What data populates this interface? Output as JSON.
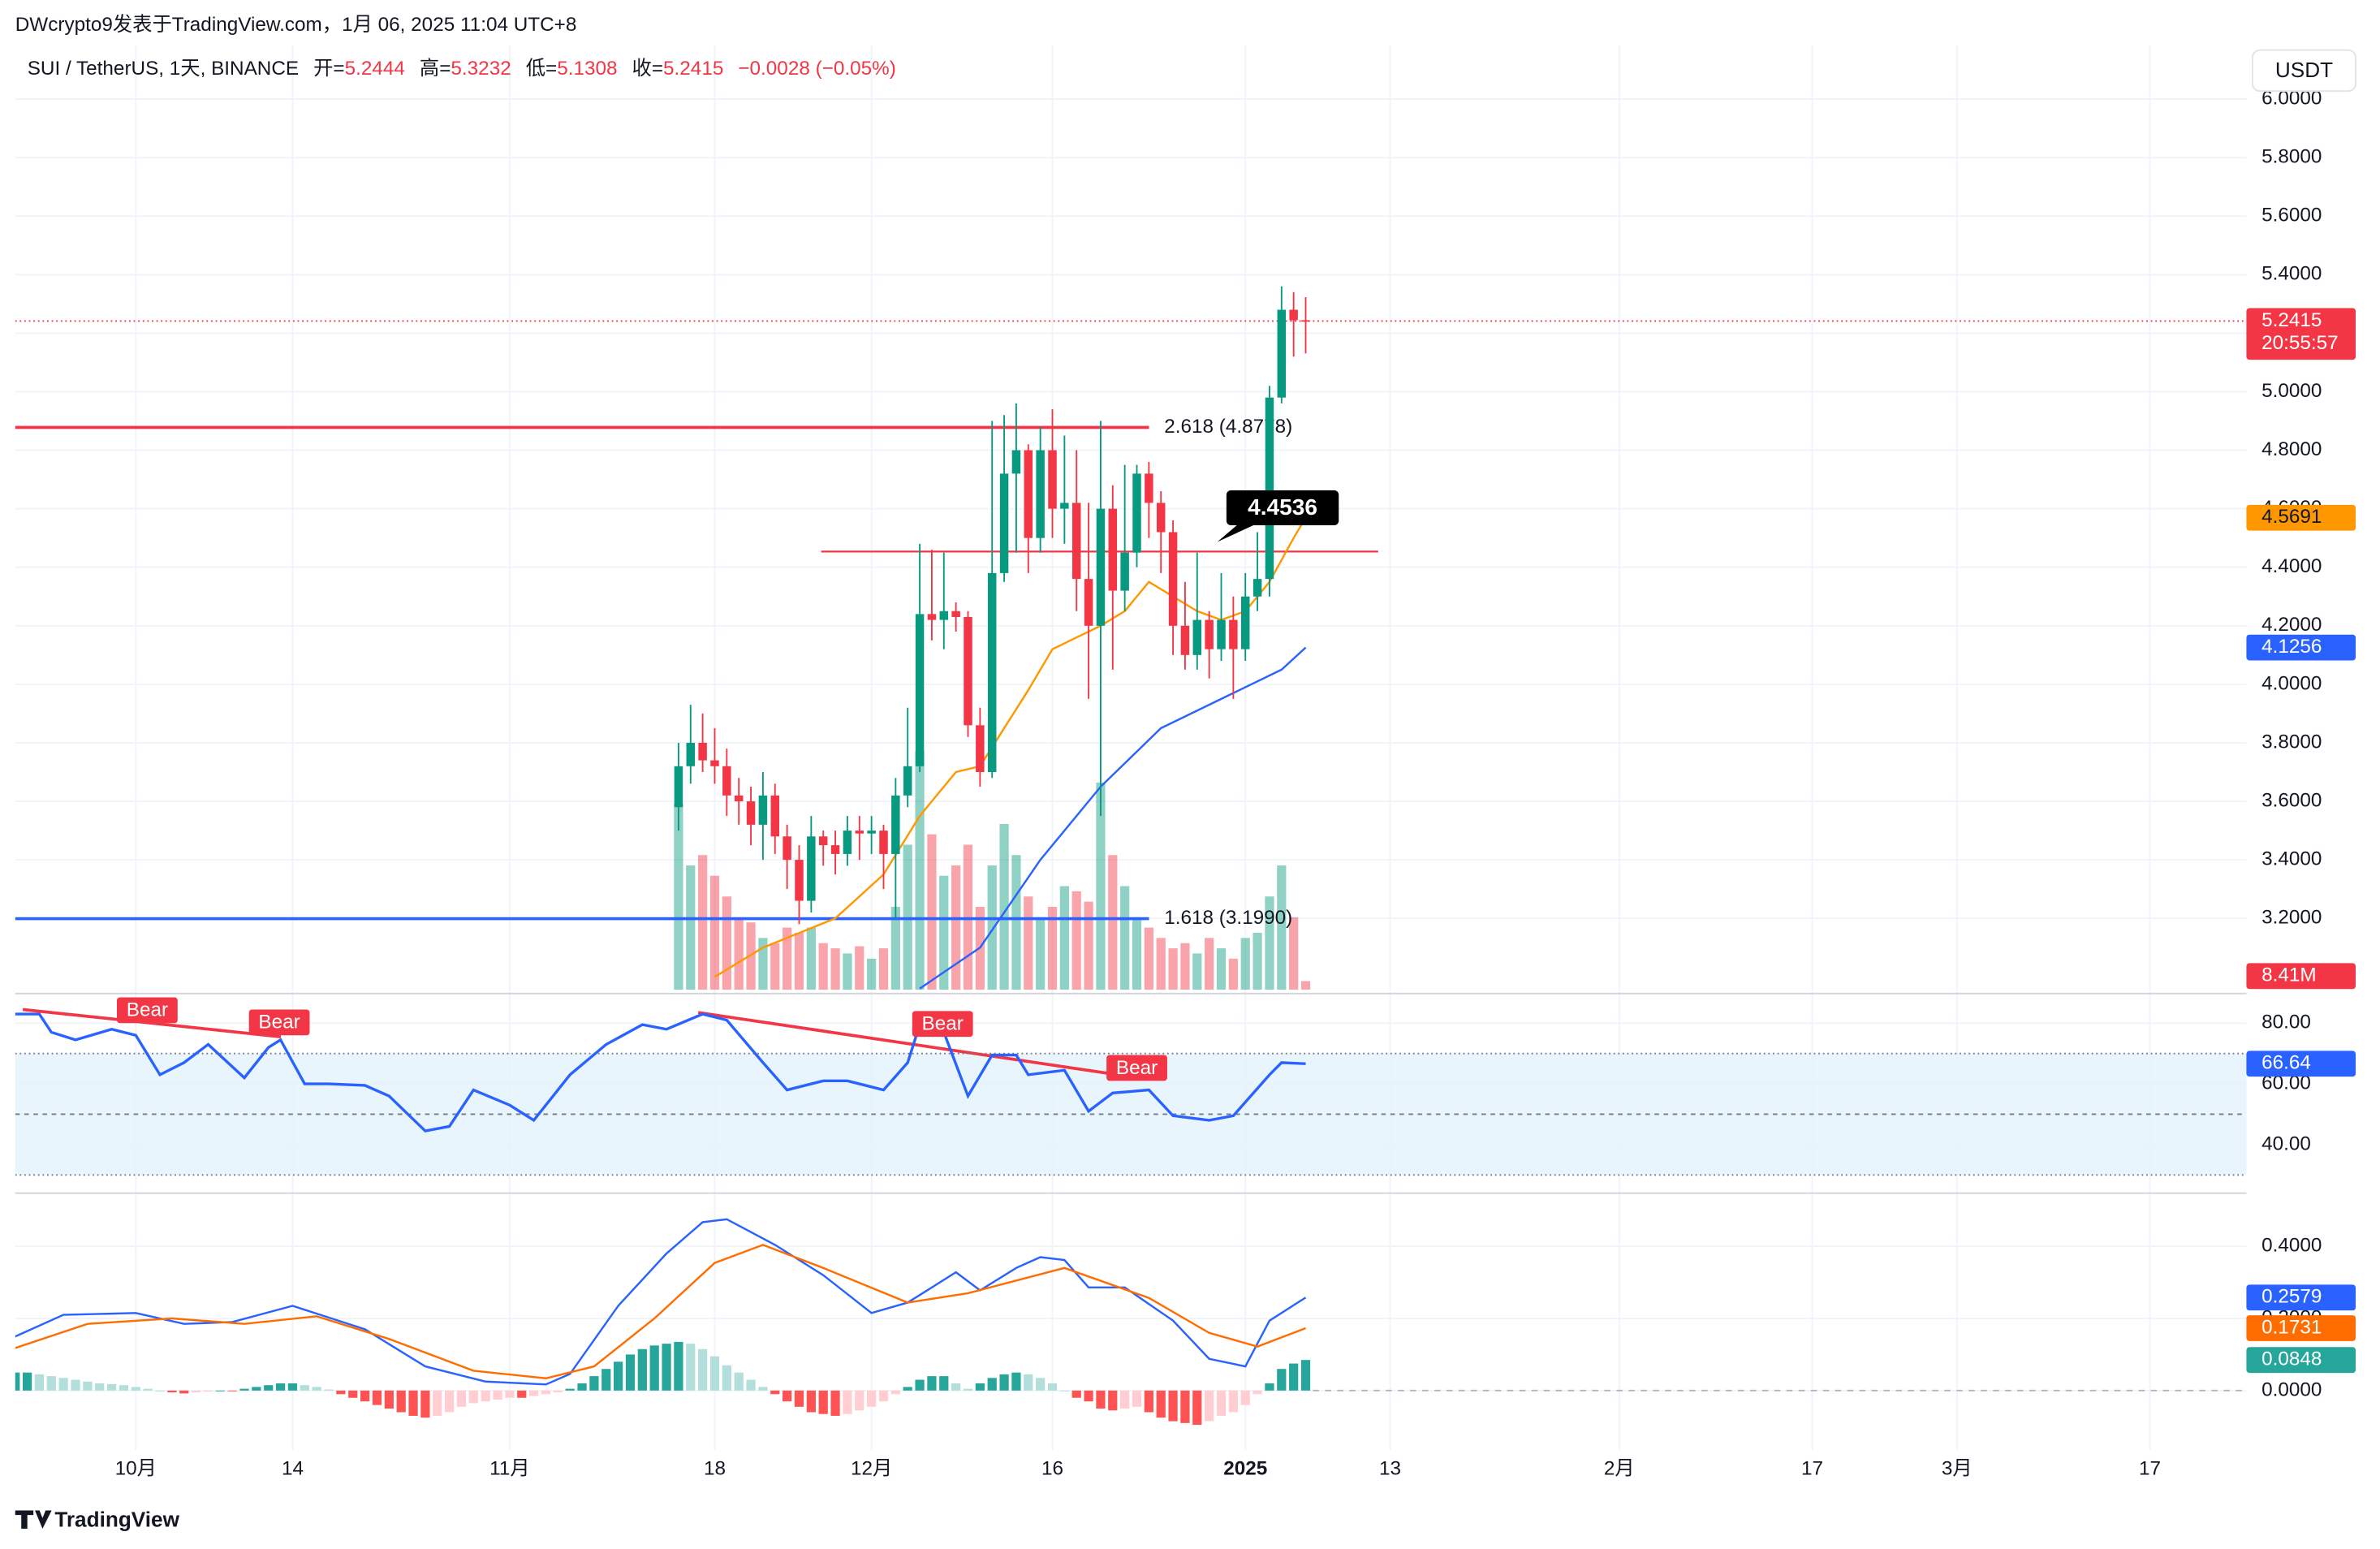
{
  "header": {
    "title": "DWcrypto9发表于TradingView.com，1月 06, 2025 11:04 UTC+8",
    "currency": "USDT",
    "brand": "TradingView"
  },
  "chart_data": [
    {
      "type": "candlestick",
      "symbol": "SUI / TetherUS, 1天, BINANCE",
      "ohlc_legend": {
        "open_label": "开=",
        "open": 5.2444,
        "high_label": "高=",
        "high": 5.3232,
        "low_label": "低=",
        "low": 5.1308,
        "close_label": "收=",
        "close": 5.2415,
        "change": "−0.0028 (−0.05%)"
      },
      "x": [
        45,
        46,
        47,
        48,
        49,
        50,
        51,
        52,
        53,
        54,
        55,
        56,
        57,
        58,
        59,
        60,
        61,
        62,
        63,
        64,
        65,
        66,
        67,
        68,
        69,
        70,
        71,
        72,
        73,
        74,
        75,
        76,
        77,
        78,
        79,
        80,
        81,
        82,
        83,
        84,
        85,
        86,
        87,
        88,
        89,
        90,
        91,
        92,
        93,
        94,
        95,
        96,
        97
      ],
      "open": [
        3.58,
        3.72,
        3.8,
        3.74,
        3.72,
        3.62,
        3.6,
        3.52,
        3.62,
        3.48,
        3.4,
        3.26,
        3.48,
        3.45,
        3.42,
        3.5,
        3.49,
        3.5,
        3.42,
        3.62,
        3.72,
        4.24,
        4.22,
        4.25,
        4.23,
        3.86,
        3.7,
        4.38,
        4.72,
        4.8,
        4.5,
        4.8,
        4.6,
        4.62,
        4.36,
        4.2,
        4.6,
        4.32,
        4.45,
        4.72,
        4.62,
        4.52,
        4.2,
        4.1,
        4.22,
        4.12,
        4.22,
        4.12,
        4.3,
        4.36,
        4.98,
        5.28,
        5.2444
      ],
      "high": [
        3.8,
        3.93,
        3.9,
        3.85,
        3.78,
        3.68,
        3.65,
        3.7,
        3.66,
        3.52,
        3.45,
        3.55,
        3.5,
        3.5,
        3.55,
        3.55,
        3.55,
        3.52,
        3.68,
        3.92,
        4.48,
        4.46,
        4.45,
        4.28,
        4.25,
        3.92,
        4.9,
        4.92,
        4.96,
        4.82,
        4.88,
        4.94,
        4.85,
        4.8,
        4.62,
        4.9,
        4.68,
        4.75,
        4.75,
        4.76,
        4.66,
        4.56,
        4.35,
        4.45,
        4.25,
        4.38,
        4.3,
        4.38,
        4.52,
        5.02,
        5.36,
        5.34,
        5.3232
      ],
      "low": [
        3.5,
        3.66,
        3.7,
        3.66,
        3.55,
        3.52,
        3.45,
        3.4,
        3.42,
        3.3,
        3.18,
        3.22,
        3.38,
        3.35,
        3.38,
        3.4,
        3.42,
        3.3,
        3.2,
        3.58,
        3.7,
        4.15,
        4.12,
        4.18,
        3.82,
        3.65,
        3.68,
        4.35,
        4.45,
        4.38,
        4.45,
        4.5,
        4.48,
        4.25,
        3.95,
        3.55,
        4.05,
        4.25,
        4.4,
        4.5,
        4.38,
        4.1,
        4.05,
        4.05,
        4.02,
        4.08,
        3.95,
        4.08,
        4.25,
        4.3,
        4.96,
        5.12,
        5.1308
      ],
      "close": [
        3.72,
        3.8,
        3.74,
        3.72,
        3.62,
        3.6,
        3.52,
        3.62,
        3.48,
        3.4,
        3.26,
        3.48,
        3.45,
        3.42,
        3.5,
        3.49,
        3.5,
        3.42,
        3.62,
        3.72,
        4.24,
        4.22,
        4.25,
        4.23,
        3.86,
        3.7,
        4.38,
        4.72,
        4.8,
        4.5,
        4.8,
        4.6,
        4.62,
        4.36,
        4.2,
        4.6,
        4.32,
        4.45,
        4.72,
        4.62,
        4.52,
        4.2,
        4.1,
        4.22,
        4.12,
        4.22,
        4.12,
        4.3,
        4.36,
        4.98,
        5.28,
        5.2444,
        5.2415
      ],
      "volume": [
        180,
        120,
        130,
        110,
        90,
        70,
        65,
        50,
        45,
        60,
        55,
        60,
        45,
        40,
        35,
        42,
        30,
        40,
        80,
        140,
        230,
        150,
        110,
        120,
        140,
        80,
        120,
        160,
        130,
        90,
        70,
        80,
        100,
        95,
        85,
        200,
        130,
        100,
        70,
        60,
        50,
        40,
        45,
        35,
        50,
        40,
        30,
        50,
        55,
        90,
        120,
        70,
        8.41
      ],
      "volume_label": "8.41M",
      "up_color": "#089981",
      "down_color": "#f23645",
      "xlim": [
        -10,
        175
      ],
      "xticks": [
        {
          "value": 0,
          "label": "10月"
        },
        {
          "value": 13,
          "label": "14"
        },
        {
          "value": 31,
          "label": "11月"
        },
        {
          "value": 48,
          "label": "18"
        },
        {
          "value": 61,
          "label": "12月"
        },
        {
          "value": 76,
          "label": "16"
        },
        {
          "value": 92,
          "label": "2025"
        },
        {
          "value": 104,
          "label": "13"
        },
        {
          "value": 123,
          "label": "2月"
        },
        {
          "value": 139,
          "label": "17"
        },
        {
          "value": 151,
          "label": "3月"
        },
        {
          "value": 167,
          "label": "17"
        }
      ],
      "ylim": [
        2.956,
        6.183
      ],
      "yticks": [
        {
          "value": 3.2,
          "label": "3.2000"
        },
        {
          "value": 3.4,
          "label": "3.4000"
        },
        {
          "value": 3.6,
          "label": "3.6000"
        },
        {
          "value": 3.8,
          "label": "3.8000"
        },
        {
          "value": 4.0,
          "label": "4.0000"
        },
        {
          "value": 4.2,
          "label": "4.2000"
        },
        {
          "value": 4.4,
          "label": "4.4000"
        },
        {
          "value": 4.6,
          "label": "4.6000"
        },
        {
          "value": 4.8,
          "label": "4.8000"
        },
        {
          "value": 5.0,
          "label": "5.0000"
        },
        {
          "value": 5.2,
          "label": "5.2000"
        },
        {
          "value": 5.4,
          "label": "5.4000"
        },
        {
          "value": 5.6,
          "label": "5.6000"
        },
        {
          "value": 5.8,
          "label": "5.8000"
        },
        {
          "value": 6.0,
          "label": "6.0000"
        }
      ],
      "grid": true,
      "last_price": {
        "value": 5.2415,
        "countdown": "20:55:57"
      },
      "moving_averages": [
        {
          "color": "#ff9800",
          "x": [
            48,
            52,
            55,
            58,
            62,
            65,
            68,
            70,
            72,
            74,
            76,
            78,
            80,
            82,
            84,
            86,
            88,
            90,
            92,
            94,
            96,
            97
          ],
          "values": [
            3.0,
            3.1,
            3.15,
            3.2,
            3.35,
            3.55,
            3.7,
            3.72,
            3.85,
            3.98,
            4.12,
            4.16,
            4.2,
            4.25,
            4.35,
            4.3,
            4.25,
            4.22,
            4.25,
            4.35,
            4.5,
            4.5691
          ]
        },
        {
          "color": "#2962ff",
          "x": [
            65,
            70,
            75,
            80,
            85,
            90,
            95,
            97
          ],
          "values": [
            2.96,
            3.1,
            3.4,
            3.65,
            3.85,
            3.95,
            4.05,
            4.1256
          ]
        }
      ],
      "fib_levels": [
        {
          "label": "2.618 (4.8778)",
          "value": 4.8778,
          "color": "#f23645"
        },
        {
          "label": "1.618 (3.1990)",
          "value": 3.199,
          "color": "#2962ff"
        }
      ],
      "horizontal_line": {
        "value": 4.4536,
        "color": "#f23645"
      }
    },
    {
      "type": "line",
      "color": "#2962ff",
      "x": [
        -10,
        -8,
        -7,
        -5,
        -2,
        0,
        2,
        4,
        6,
        9,
        11,
        12,
        14,
        16,
        19,
        21,
        24,
        26,
        28,
        31,
        33,
        36,
        39,
        42,
        44,
        47,
        49,
        52,
        54,
        57,
        59,
        62,
        64,
        65,
        67,
        69,
        71,
        73,
        74,
        77,
        79,
        81,
        84,
        86,
        89,
        91,
        94,
        95,
        97
      ],
      "values": [
        83,
        83,
        77,
        74.5,
        78,
        76,
        63,
        67,
        73,
        62,
        72,
        74.5,
        60,
        60,
        59.5,
        56,
        44.5,
        46,
        58,
        53,
        48,
        63,
        73,
        79.5,
        78,
        83,
        81,
        67,
        58,
        61,
        61,
        58,
        67,
        79.5,
        77,
        56,
        69.5,
        69.5,
        63,
        64.5,
        51,
        57,
        58,
        49.5,
        48,
        49.5,
        63,
        67,
        66.64
      ],
      "ylim": [
        27,
        87
      ],
      "yticks": [
        {
          "value": 80,
          "label": "80.00"
        },
        {
          "value": 60,
          "label": "60.00"
        },
        {
          "value": 40,
          "label": "40.00"
        }
      ],
      "levels": [
        70,
        50,
        30
      ],
      "annotations": [
        "Bear",
        "Bear",
        "Bear",
        "Bear"
      ]
    },
    {
      "type": "macd",
      "series": [
        {
          "color": "#2962ff",
          "x": [
            -10,
            -6,
            0,
            4,
            8,
            13,
            19,
            24,
            29,
            34,
            36,
            40,
            44,
            47,
            49,
            53,
            57,
            61,
            64,
            68,
            70,
            73,
            75,
            77,
            79,
            82,
            86,
            89,
            92,
            94,
            97
          ],
          "values": [
            0.15,
            0.21,
            0.215,
            0.185,
            0.19,
            0.235,
            0.17,
            0.067,
            0.025,
            0.017,
            0.046,
            0.235,
            0.38,
            0.467,
            0.475,
            0.404,
            0.32,
            0.215,
            0.244,
            0.328,
            0.278,
            0.34,
            0.37,
            0.362,
            0.286,
            0.286,
            0.194,
            0.088,
            0.067,
            0.194,
            0.2579
          ]
        },
        {
          "color": "#ff6d00",
          "x": [
            -10,
            -4,
            3,
            9,
            15,
            21,
            28,
            34,
            38,
            43,
            48,
            52,
            57,
            64,
            69,
            77,
            84,
            89,
            93,
            97
          ],
          "values": [
            0.118,
            0.185,
            0.2,
            0.185,
            0.206,
            0.143,
            0.055,
            0.034,
            0.067,
            0.2,
            0.354,
            0.404,
            0.34,
            0.244,
            0.27,
            0.34,
            0.257,
            0.16,
            0.122,
            0.1731
          ]
        }
      ],
      "histogram": {
        "colors": [
          "#26a69a",
          "#b2dfdb",
          "#ff5252",
          "#ffcdd2"
        ],
        "x": [
          -10,
          -9,
          -8,
          -7,
          -6,
          -5,
          -4,
          -3,
          -2,
          -1,
          0,
          1,
          2,
          3,
          4,
          5,
          6,
          7,
          8,
          9,
          10,
          11,
          12,
          13,
          14,
          15,
          16,
          17,
          18,
          19,
          20,
          21,
          22,
          23,
          24,
          25,
          26,
          27,
          28,
          29,
          30,
          31,
          32,
          33,
          34,
          35,
          36,
          37,
          38,
          39,
          40,
          41,
          42,
          43,
          44,
          45,
          46,
          47,
          48,
          49,
          50,
          51,
          52,
          53,
          54,
          55,
          56,
          57,
          58,
          59,
          60,
          61,
          62,
          63,
          64,
          65,
          66,
          67,
          68,
          69,
          70,
          71,
          72,
          73,
          74,
          75,
          76,
          77,
          78,
          79,
          80,
          81,
          82,
          83,
          84,
          85,
          86,
          87,
          88,
          89,
          90,
          91,
          92,
          93,
          94,
          95,
          96,
          97
        ],
        "values": [
          0.05,
          0.05,
          0.045,
          0.04,
          0.035,
          0.03,
          0.025,
          0.02,
          0.018,
          0.015,
          0.01,
          0.005,
          0,
          -0.005,
          -0.008,
          -0.005,
          -0.003,
          0,
          -0.002,
          0.005,
          0.01,
          0.015,
          0.02,
          0.02,
          0.015,
          0.01,
          0.003,
          -0.01,
          -0.02,
          -0.03,
          -0.04,
          -0.05,
          -0.06,
          -0.07,
          -0.075,
          -0.07,
          -0.06,
          -0.045,
          -0.035,
          -0.03,
          -0.025,
          -0.02,
          -0.02,
          -0.015,
          -0.01,
          -0.005,
          0.005,
          0.02,
          0.04,
          0.06,
          0.08,
          0.1,
          0.115,
          0.125,
          0.13,
          0.135,
          0.13,
          0.115,
          0.095,
          0.07,
          0.05,
          0.03,
          0.01,
          -0.01,
          -0.03,
          -0.045,
          -0.06,
          -0.065,
          -0.07,
          -0.065,
          -0.055,
          -0.045,
          -0.03,
          -0.01,
          0.01,
          0.03,
          0.04,
          0.04,
          0.02,
          0.005,
          0.02,
          0.035,
          0.045,
          0.05,
          0.045,
          0.035,
          0.02,
          0,
          -0.02,
          -0.03,
          -0.05,
          -0.055,
          -0.05,
          -0.045,
          -0.06,
          -0.075,
          -0.085,
          -0.09,
          -0.095,
          -0.085,
          -0.07,
          -0.06,
          -0.04,
          -0.01,
          0.02,
          0.06,
          0.075,
          0.0848
        ]
      },
      "ylim": [
        -0.164,
        0.5305
      ],
      "yticks": [
        {
          "value": 0.4,
          "label": "0.4000"
        },
        {
          "value": 0.2,
          "label": "0.2000"
        },
        {
          "value": 0,
          "label": "0.0000"
        }
      ]
    }
  ]
}
